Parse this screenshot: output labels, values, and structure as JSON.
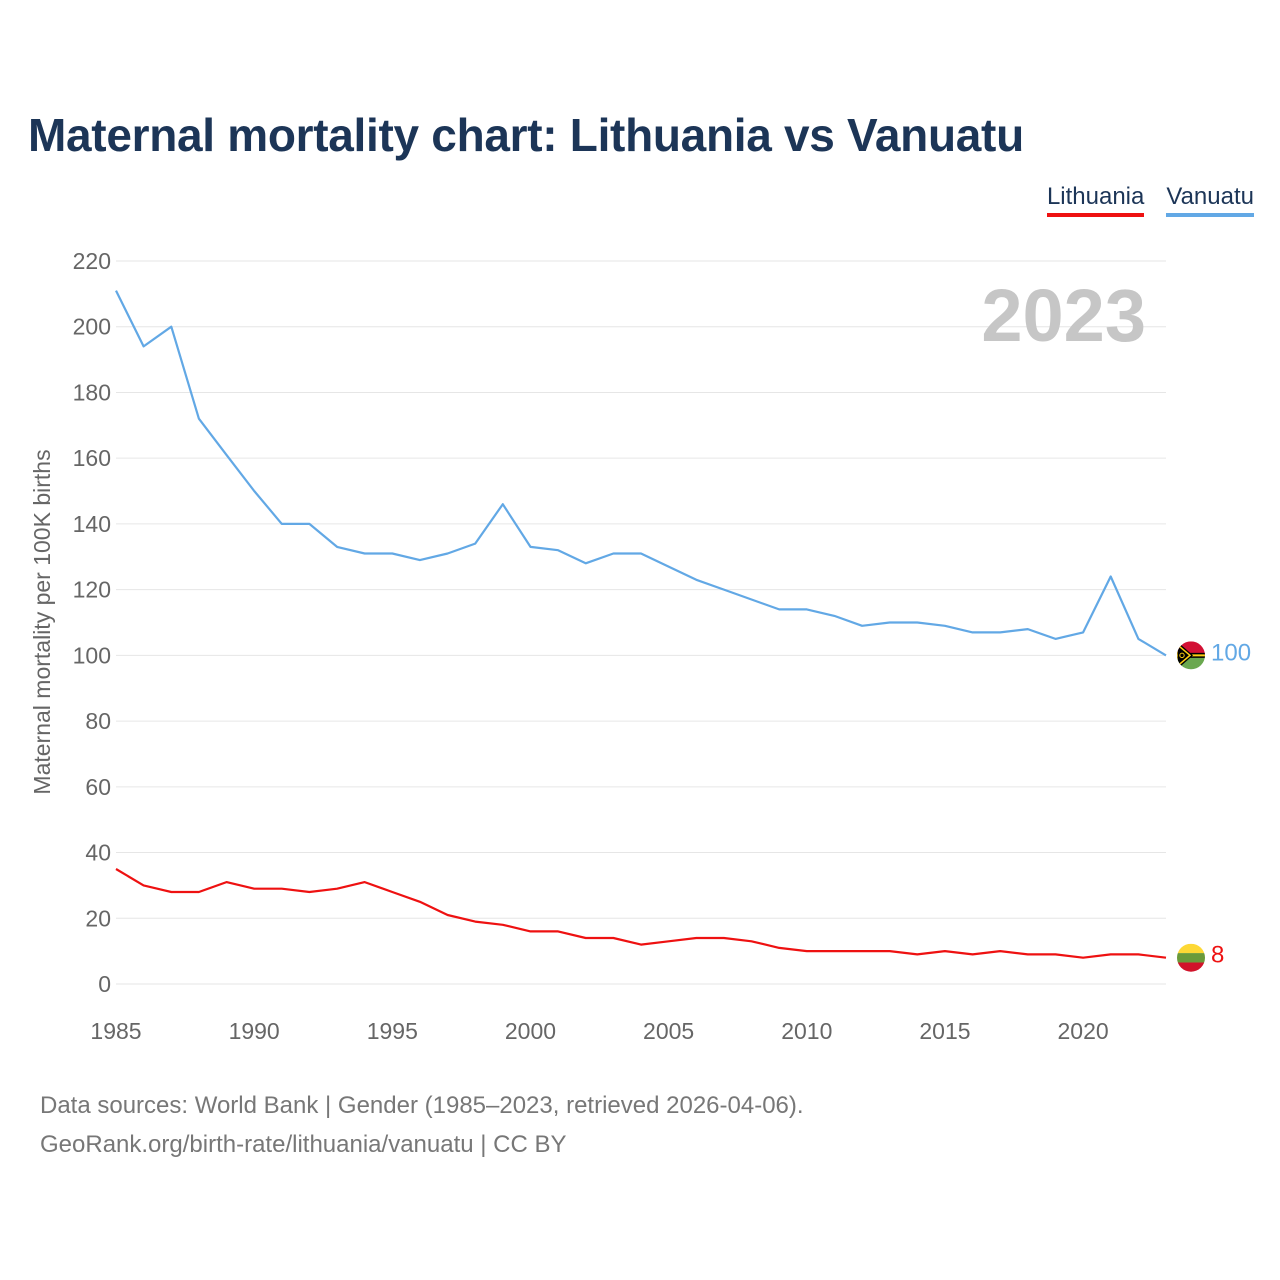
{
  "title": "Maternal mortality chart: Lithuania vs Vanuatu",
  "footer": {
    "sources": "Data sources: World Bank | Gender (1985–2023, retrieved 2026-04-06).",
    "credit": "GeoRank.org/birth-rate/lithuania/vanuatu | CC BY"
  },
  "chart_data": {
    "type": "line",
    "title": "Maternal mortality chart: Lithuania vs Vanuatu",
    "ylabel": "Maternal mortality per 100K births",
    "xlabel": "",
    "year_watermark": "2023",
    "xlim": [
      1985,
      2023
    ],
    "ylim": [
      0,
      220
    ],
    "x_ticks": [
      1985,
      1990,
      1995,
      2000,
      2005,
      2010,
      2015,
      2020
    ],
    "y_ticks": [
      0,
      20,
      40,
      60,
      80,
      100,
      120,
      140,
      160,
      180,
      200,
      220
    ],
    "grid": true,
    "legend_position": "top-right",
    "x": [
      1985,
      1986,
      1987,
      1988,
      1989,
      1990,
      1991,
      1992,
      1993,
      1994,
      1995,
      1996,
      1997,
      1998,
      1999,
      2000,
      2001,
      2002,
      2003,
      2004,
      2005,
      2006,
      2007,
      2008,
      2009,
      2010,
      2011,
      2012,
      2013,
      2014,
      2015,
      2016,
      2017,
      2018,
      2019,
      2020,
      2021,
      2022,
      2023
    ],
    "series": [
      {
        "name": "Lithuania",
        "color": "#ee1111",
        "end_label": "8",
        "values": [
          35,
          30,
          28,
          28,
          31,
          29,
          29,
          28,
          29,
          31,
          28,
          25,
          21,
          19,
          18,
          16,
          16,
          14,
          14,
          12,
          13,
          14,
          14,
          13,
          11,
          10,
          10,
          10,
          10,
          9,
          10,
          9,
          10,
          9,
          9,
          8,
          9,
          9,
          8
        ]
      },
      {
        "name": "Vanuatu",
        "color": "#62a8e5",
        "end_label": "100",
        "values": [
          211,
          194,
          200,
          172,
          161,
          150,
          140,
          140,
          133,
          131,
          131,
          129,
          131,
          134,
          146,
          133,
          132,
          128,
          131,
          131,
          127,
          123,
          120,
          117,
          114,
          114,
          112,
          109,
          110,
          110,
          109,
          107,
          107,
          108,
          105,
          107,
          124,
          105,
          100
        ]
      }
    ]
  }
}
